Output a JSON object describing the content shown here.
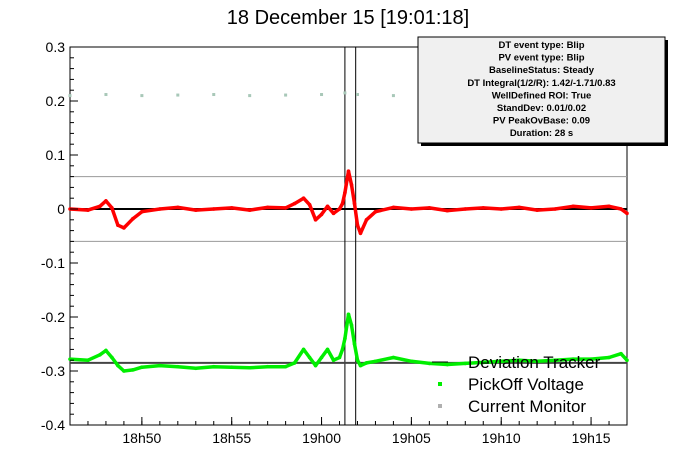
{
  "chart_data": {
    "type": "scatter",
    "title": "18 December 15 [19:01:18]",
    "xlabel": "",
    "ylabel": "",
    "x_range": [
      "18:46",
      "19:17"
    ],
    "x_ticks": [
      {
        "time": "18:50",
        "label": "18h50"
      },
      {
        "time": "18:55",
        "label": "18h55"
      },
      {
        "time": "19:00",
        "label": "19h00"
      },
      {
        "time": "19:05",
        "label": "19h05"
      },
      {
        "time": "19:10",
        "label": "19h10"
      },
      {
        "time": "19:15",
        "label": "19h15"
      }
    ],
    "ylim": [
      -0.4,
      0.3
    ],
    "y_ticks": [
      {
        "value": 0.3,
        "label": "0.3"
      },
      {
        "value": 0.2,
        "label": "0.2"
      },
      {
        "value": 0.1,
        "label": "0.1"
      },
      {
        "value": 0,
        "label": "0"
      },
      {
        "value": -0.1,
        "label": "-0.1"
      },
      {
        "value": -0.2,
        "label": "-0.2"
      },
      {
        "value": -0.3,
        "label": "-0.3"
      },
      {
        "value": -0.4,
        "label": "-0.4"
      }
    ],
    "grid": false,
    "reference_lines": {
      "horizontal": [
        0.06,
        -0.06
      ],
      "vertical": [
        "19:01:18",
        "19:01:54"
      ]
    },
    "series": [
      {
        "name": "Deviation Tracker",
        "color": "#ff0000",
        "points": [
          [
            "18:46:00",
            0.0
          ],
          [
            "18:47:00",
            -0.002
          ],
          [
            "18:47:40",
            0.005
          ],
          [
            "18:48:00",
            0.015
          ],
          [
            "18:48:20",
            0.002
          ],
          [
            "18:48:40",
            -0.03
          ],
          [
            "18:49:00",
            -0.035
          ],
          [
            "18:49:30",
            -0.018
          ],
          [
            "18:50:00",
            -0.005
          ],
          [
            "18:51:00",
            0.0
          ],
          [
            "18:52:00",
            0.003
          ],
          [
            "18:53:00",
            -0.002
          ],
          [
            "18:54:00",
            0.0
          ],
          [
            "18:55:00",
            0.002
          ],
          [
            "18:56:00",
            -0.002
          ],
          [
            "18:57:00",
            0.003
          ],
          [
            "18:58:00",
            0.002
          ],
          [
            "18:58:30",
            0.01
          ],
          [
            "18:59:00",
            0.02
          ],
          [
            "18:59:20",
            0.008
          ],
          [
            "18:59:40",
            -0.02
          ],
          [
            "19:00:00",
            -0.01
          ],
          [
            "19:00:20",
            0.005
          ],
          [
            "19:00:40",
            -0.008
          ],
          [
            "19:01:00",
            0.0
          ],
          [
            "19:01:10",
            0.01
          ],
          [
            "19:01:18",
            0.03
          ],
          [
            "19:01:30",
            0.07
          ],
          [
            "19:01:40",
            0.045
          ],
          [
            "19:01:50",
            0.01
          ],
          [
            "19:02:00",
            -0.03
          ],
          [
            "19:02:10",
            -0.045
          ],
          [
            "19:02:30",
            -0.02
          ],
          [
            "19:03:00",
            -0.005
          ],
          [
            "19:04:00",
            0.003
          ],
          [
            "19:05:00",
            0.0
          ],
          [
            "19:06:00",
            0.002
          ],
          [
            "19:07:00",
            -0.003
          ],
          [
            "19:08:00",
            0.0
          ],
          [
            "19:09:00",
            0.002
          ],
          [
            "19:10:00",
            0.0
          ],
          [
            "19:11:00",
            0.003
          ],
          [
            "19:12:00",
            -0.002
          ],
          [
            "19:13:00",
            0.0
          ],
          [
            "19:14:00",
            0.005
          ],
          [
            "19:15:00",
            0.002
          ],
          [
            "19:16:00",
            0.005
          ],
          [
            "19:16:40",
            0.0
          ],
          [
            "19:17:00",
            -0.008
          ]
        ]
      },
      {
        "name": "PickOff Voltage",
        "color": "#00ee00",
        "points": [
          [
            "18:46:00",
            -0.278
          ],
          [
            "18:47:00",
            -0.28
          ],
          [
            "18:47:40",
            -0.27
          ],
          [
            "18:48:00",
            -0.262
          ],
          [
            "18:48:20",
            -0.275
          ],
          [
            "18:48:40",
            -0.29
          ],
          [
            "18:49:00",
            -0.3
          ],
          [
            "18:49:30",
            -0.298
          ],
          [
            "18:50:00",
            -0.293
          ],
          [
            "18:51:00",
            -0.29
          ],
          [
            "18:52:00",
            -0.292
          ],
          [
            "18:53:00",
            -0.295
          ],
          [
            "18:54:00",
            -0.292
          ],
          [
            "18:55:00",
            -0.293
          ],
          [
            "18:56:00",
            -0.294
          ],
          [
            "18:57:00",
            -0.292
          ],
          [
            "18:58:00",
            -0.292
          ],
          [
            "18:58:30",
            -0.285
          ],
          [
            "18:59:00",
            -0.26
          ],
          [
            "18:59:20",
            -0.275
          ],
          [
            "18:59:40",
            -0.29
          ],
          [
            "19:00:00",
            -0.275
          ],
          [
            "19:00:20",
            -0.26
          ],
          [
            "19:00:40",
            -0.28
          ],
          [
            "19:01:00",
            -0.275
          ],
          [
            "19:01:10",
            -0.26
          ],
          [
            "19:01:18",
            -0.24
          ],
          [
            "19:01:30",
            -0.195
          ],
          [
            "19:01:40",
            -0.215
          ],
          [
            "19:01:50",
            -0.25
          ],
          [
            "19:02:00",
            -0.28
          ],
          [
            "19:02:10",
            -0.29
          ],
          [
            "19:02:30",
            -0.285
          ],
          [
            "19:03:00",
            -0.282
          ],
          [
            "19:04:00",
            -0.275
          ],
          [
            "19:05:00",
            -0.282
          ],
          [
            "19:06:00",
            -0.286
          ],
          [
            "19:07:00",
            -0.288
          ],
          [
            "19:08:00",
            -0.286
          ],
          [
            "19:09:00",
            -0.284
          ],
          [
            "19:10:00",
            -0.282
          ],
          [
            "19:11:00",
            -0.28
          ],
          [
            "19:12:00",
            -0.282
          ],
          [
            "19:13:00",
            -0.28
          ],
          [
            "19:14:00",
            -0.278
          ],
          [
            "19:15:00",
            -0.278
          ],
          [
            "19:16:00",
            -0.275
          ],
          [
            "19:16:40",
            -0.268
          ],
          [
            "19:17:00",
            -0.28
          ]
        ]
      },
      {
        "name": "Current Monitor",
        "color": "#a8c8b8",
        "points": [
          [
            "18:46:00",
            0.21
          ],
          [
            "18:48:00",
            0.212
          ],
          [
            "18:50:00",
            0.21
          ],
          [
            "18:52:00",
            0.211
          ],
          [
            "18:54:00",
            0.212
          ],
          [
            "18:56:00",
            0.21
          ],
          [
            "18:58:00",
            0.211
          ],
          [
            "19:00:00",
            0.212
          ],
          [
            "19:01:18",
            0.215
          ],
          [
            "19:02:00",
            0.212
          ],
          [
            "19:04:00",
            0.21
          ],
          [
            "19:06:00",
            0.211
          ]
        ]
      }
    ],
    "baselines": [
      {
        "series": "Deviation Tracker",
        "value": 0.0,
        "color": "#000000"
      },
      {
        "series": "PickOff Voltage",
        "value": -0.285,
        "color": "#444444"
      }
    ],
    "stats_box": [
      "DT event type: Blip",
      "PV event type: Blip",
      "BaselineStatus: Steady",
      "DT Integral(1/2/R): 1.42/-1.71/0.83",
      "WellDefined ROI: True",
      "StandDev: 0.01/0.02",
      "PV PeakOvBase: 0.09",
      "Duration: 28 s"
    ],
    "legend": {
      "placement": "bottom-right",
      "entries": [
        {
          "label": "Deviation Tracker",
          "marker": "line"
        },
        {
          "label": "PickOff Voltage",
          "marker": "dot",
          "color": "#00ee00"
        },
        {
          "label": "Current Monitor",
          "marker": "dot",
          "color": "#b0b0b0"
        }
      ]
    }
  }
}
